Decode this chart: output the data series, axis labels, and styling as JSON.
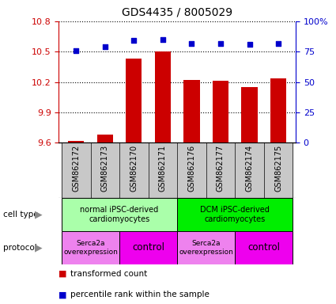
{
  "title": "GDS4435 / 8005029",
  "samples": [
    "GSM862172",
    "GSM862173",
    "GSM862170",
    "GSM862171",
    "GSM862176",
    "GSM862177",
    "GSM862174",
    "GSM862175"
  ],
  "red_values": [
    9.62,
    9.68,
    10.43,
    10.5,
    10.22,
    10.21,
    10.15,
    10.24
  ],
  "blue_values": [
    76,
    79,
    84,
    85,
    82,
    82,
    81,
    82
  ],
  "ylim_left": [
    9.6,
    10.8
  ],
  "ylim_right": [
    0,
    100
  ],
  "yticks_left": [
    9.6,
    9.9,
    10.2,
    10.5,
    10.8
  ],
  "yticks_right": [
    0,
    25,
    50,
    75,
    100
  ],
  "ytick_labels_left": [
    "9.6",
    "9.9",
    "10.2",
    "10.5",
    "10.8"
  ],
  "ytick_labels_right": [
    "0",
    "25",
    "50",
    "75",
    "100%"
  ],
  "cell_type_groups": [
    {
      "label": "normal iPSC-derived\ncardiomyocytes",
      "start": 0,
      "end": 3,
      "color": "#AAFFAA"
    },
    {
      "label": "DCM iPSC-derived\ncardiomyocytes",
      "start": 4,
      "end": 7,
      "color": "#00EE00"
    }
  ],
  "protocol_groups": [
    {
      "label": "Serca2a\noverexpression",
      "start": 0,
      "end": 1,
      "color": "#EE82EE"
    },
    {
      "label": "control",
      "start": 2,
      "end": 3,
      "color": "#EE00EE"
    },
    {
      "label": "Serca2a\noverexpression",
      "start": 4,
      "end": 5,
      "color": "#EE82EE"
    },
    {
      "label": "control",
      "start": 6,
      "end": 7,
      "color": "#EE00EE"
    }
  ],
  "bar_color": "#CC0000",
  "dot_color": "#0000CC",
  "bar_width": 0.55,
  "tick_color_left": "#CC0000",
  "tick_color_right": "#0000CC",
  "label_left": "cell type",
  "label_proto": "protocol",
  "legend_red": "transformed count",
  "legend_blue": "percentile rank within the sample"
}
